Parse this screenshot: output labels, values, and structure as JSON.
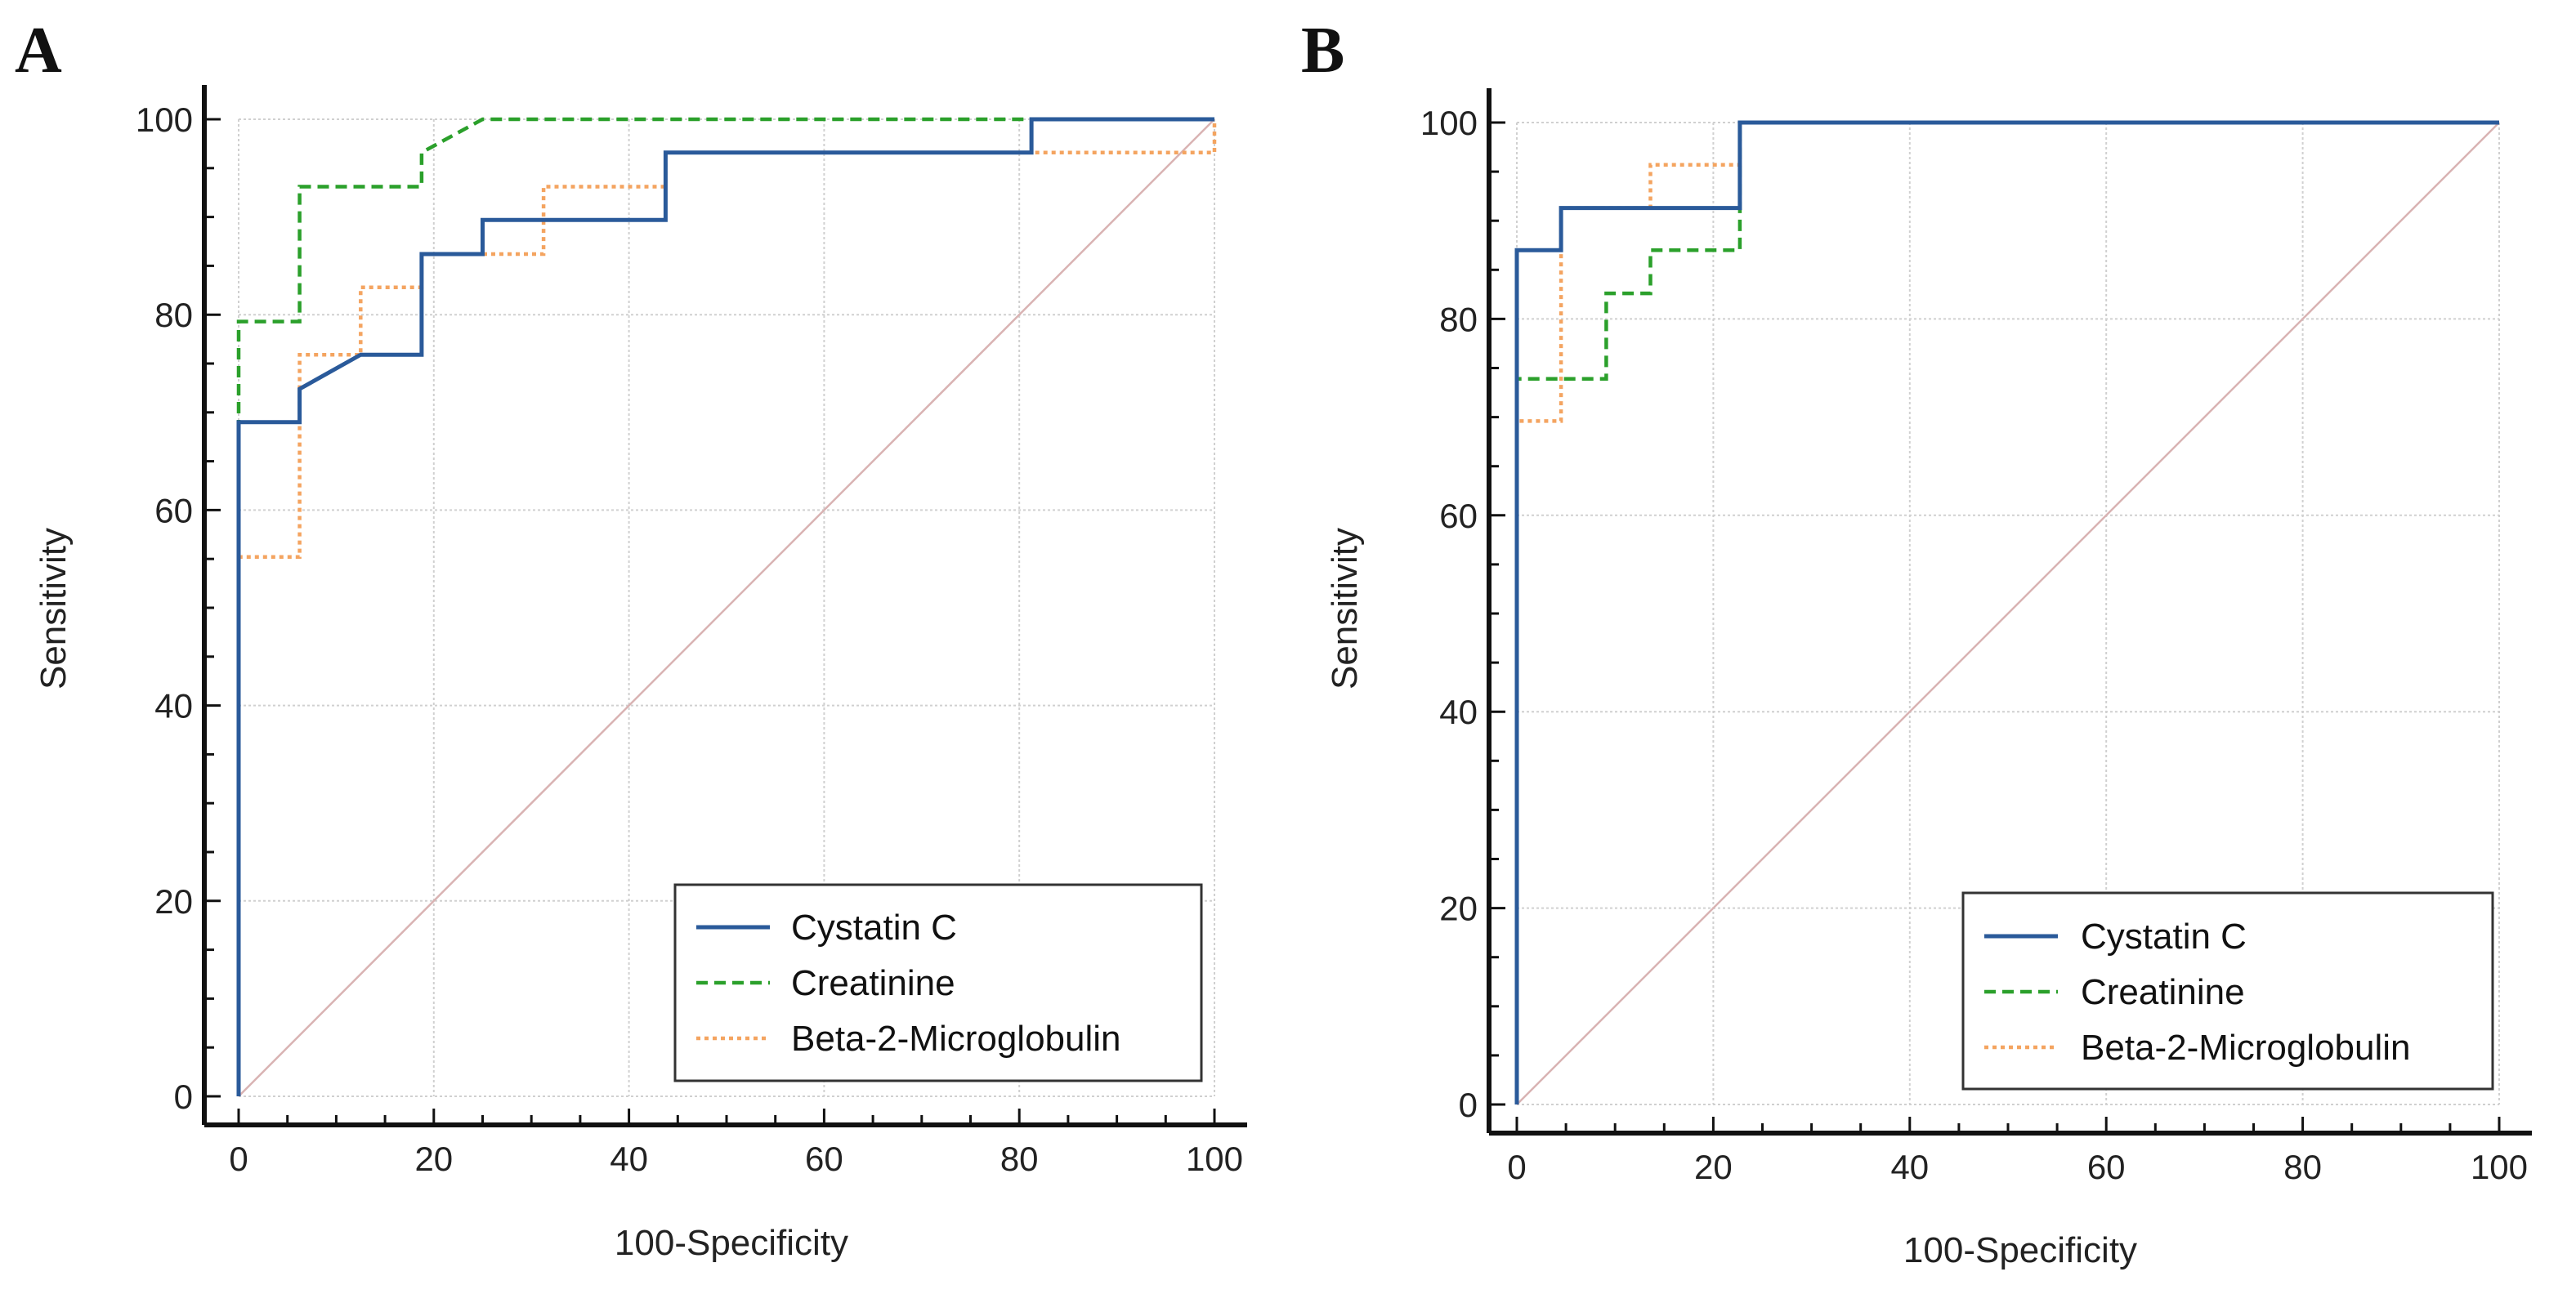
{
  "figure": {
    "panels": [
      "A",
      "B"
    ]
  },
  "colors": {
    "cystatin": "#2a5a9a",
    "creatinine": "#2ba02b",
    "beta2": "#f4a460",
    "diagonal": "#d9b3b3",
    "grid": "#d0d0d0",
    "axis": "#111111"
  },
  "chart_data": [
    {
      "type": "line",
      "panel_label": "A",
      "xlabel": "100-Specificity",
      "ylabel": "Sensitivity",
      "xlim": [
        0,
        100
      ],
      "ylim": [
        0,
        100
      ],
      "xticks": [
        0,
        20,
        40,
        60,
        80,
        100
      ],
      "yticks": [
        0,
        20,
        40,
        60,
        80,
        100
      ],
      "grid": true,
      "legend_position": "bottom-right",
      "series": [
        {
          "name": "Cystatin C",
          "style": "solid",
          "x": [
            0,
            0,
            6.25,
            6.25,
            12.5,
            18.75,
            18.75,
            25,
            25,
            43.75,
            43.75,
            81.25,
            81.25,
            100
          ],
          "y": [
            0,
            69,
            69,
            72.4,
            75.9,
            75.9,
            86.2,
            86.2,
            89.7,
            89.7,
            96.6,
            96.6,
            100,
            100
          ]
        },
        {
          "name": "Creatinine",
          "style": "dashed",
          "x": [
            0,
            0,
            6.25,
            6.25,
            18.75,
            18.75,
            25,
            100
          ],
          "y": [
            0,
            79.3,
            79.3,
            93.1,
            93.1,
            96.6,
            100,
            100
          ]
        },
        {
          "name": "Beta-2-Microglobulin",
          "style": "dotted",
          "x": [
            0,
            0,
            6.25,
            6.25,
            12.5,
            12.5,
            18.75,
            18.75,
            31.25,
            31.25,
            43.75,
            43.75,
            100,
            100
          ],
          "y": [
            0,
            55.2,
            55.2,
            75.9,
            75.9,
            82.8,
            82.8,
            86.2,
            86.2,
            93.1,
            93.1,
            96.6,
            96.6,
            100
          ]
        }
      ]
    },
    {
      "type": "line",
      "panel_label": "B",
      "xlabel": "100-Specificity",
      "ylabel": "Sensitivity",
      "xlim": [
        0,
        100
      ],
      "ylim": [
        0,
        100
      ],
      "xticks": [
        0,
        20,
        40,
        60,
        80,
        100
      ],
      "yticks": [
        0,
        20,
        40,
        60,
        80,
        100
      ],
      "grid": true,
      "legend_position": "bottom-right",
      "series": [
        {
          "name": "Cystatin C",
          "style": "solid",
          "x": [
            0,
            0,
            4.5,
            4.5,
            22.7,
            22.7,
            100
          ],
          "y": [
            0,
            87,
            87,
            91.3,
            91.3,
            100,
            100
          ]
        },
        {
          "name": "Creatinine",
          "style": "dashed",
          "x": [
            0,
            0,
            9.1,
            9.1,
            13.6,
            13.6,
            22.7,
            22.7,
            100
          ],
          "y": [
            0,
            73.9,
            73.9,
            82.6,
            82.6,
            87,
            87,
            100,
            100
          ]
        },
        {
          "name": "Beta-2-Microglobulin",
          "style": "dotted",
          "x": [
            0,
            0,
            4.5,
            4.5,
            13.6,
            13.6,
            22.7,
            22.7,
            100
          ],
          "y": [
            0,
            69.6,
            69.6,
            91.3,
            91.3,
            95.7,
            95.7,
            100,
            100
          ]
        }
      ]
    }
  ]
}
